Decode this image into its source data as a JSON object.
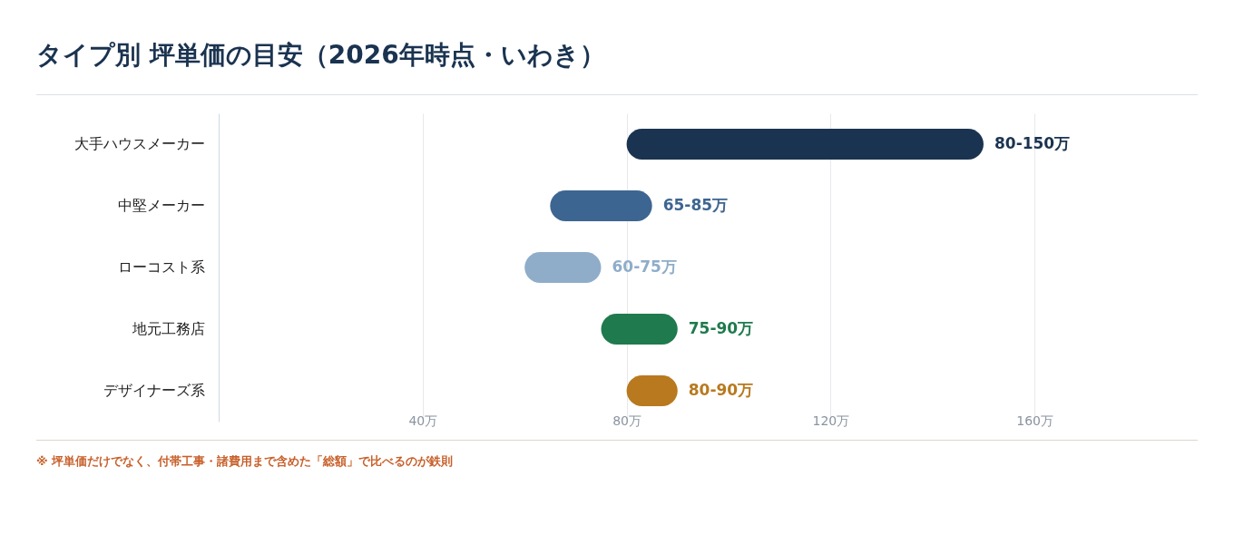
{
  "chart_data": {
    "type": "bar",
    "orientation": "horizontal",
    "title": "タイプ別 坪単価の目安（2026年時点・いわき）",
    "categories": [
      "大手ハウスメーカー",
      "中堅メーカー",
      "ローコスト系",
      "地元工務店",
      "デザイナーズ系"
    ],
    "base": [
      80,
      65,
      60,
      75,
      80
    ],
    "values": [
      70,
      20,
      15,
      15,
      10
    ],
    "colors": [
      "#1a3350",
      "#3d6591",
      "#8fadc9",
      "#1f7a4d",
      "#b8791f"
    ],
    "value_labels": [
      "80-150万",
      "65-85万",
      "60-75万",
      "75-90万",
      "80-90万"
    ],
    "xlim": [
      0,
      192
    ],
    "xticks": [
      {
        "value": 40,
        "label": "40万"
      },
      {
        "value": 80,
        "label": "80万"
      },
      {
        "value": 120,
        "label": "120万"
      },
      {
        "value": 160,
        "label": "160万"
      }
    ],
    "grid": "x",
    "legend": false,
    "annotations": [
      "※ 坪単価だけでなく、付帯工事・諸費用まで含めた「総額」で比べるのが鉄則"
    ]
  }
}
